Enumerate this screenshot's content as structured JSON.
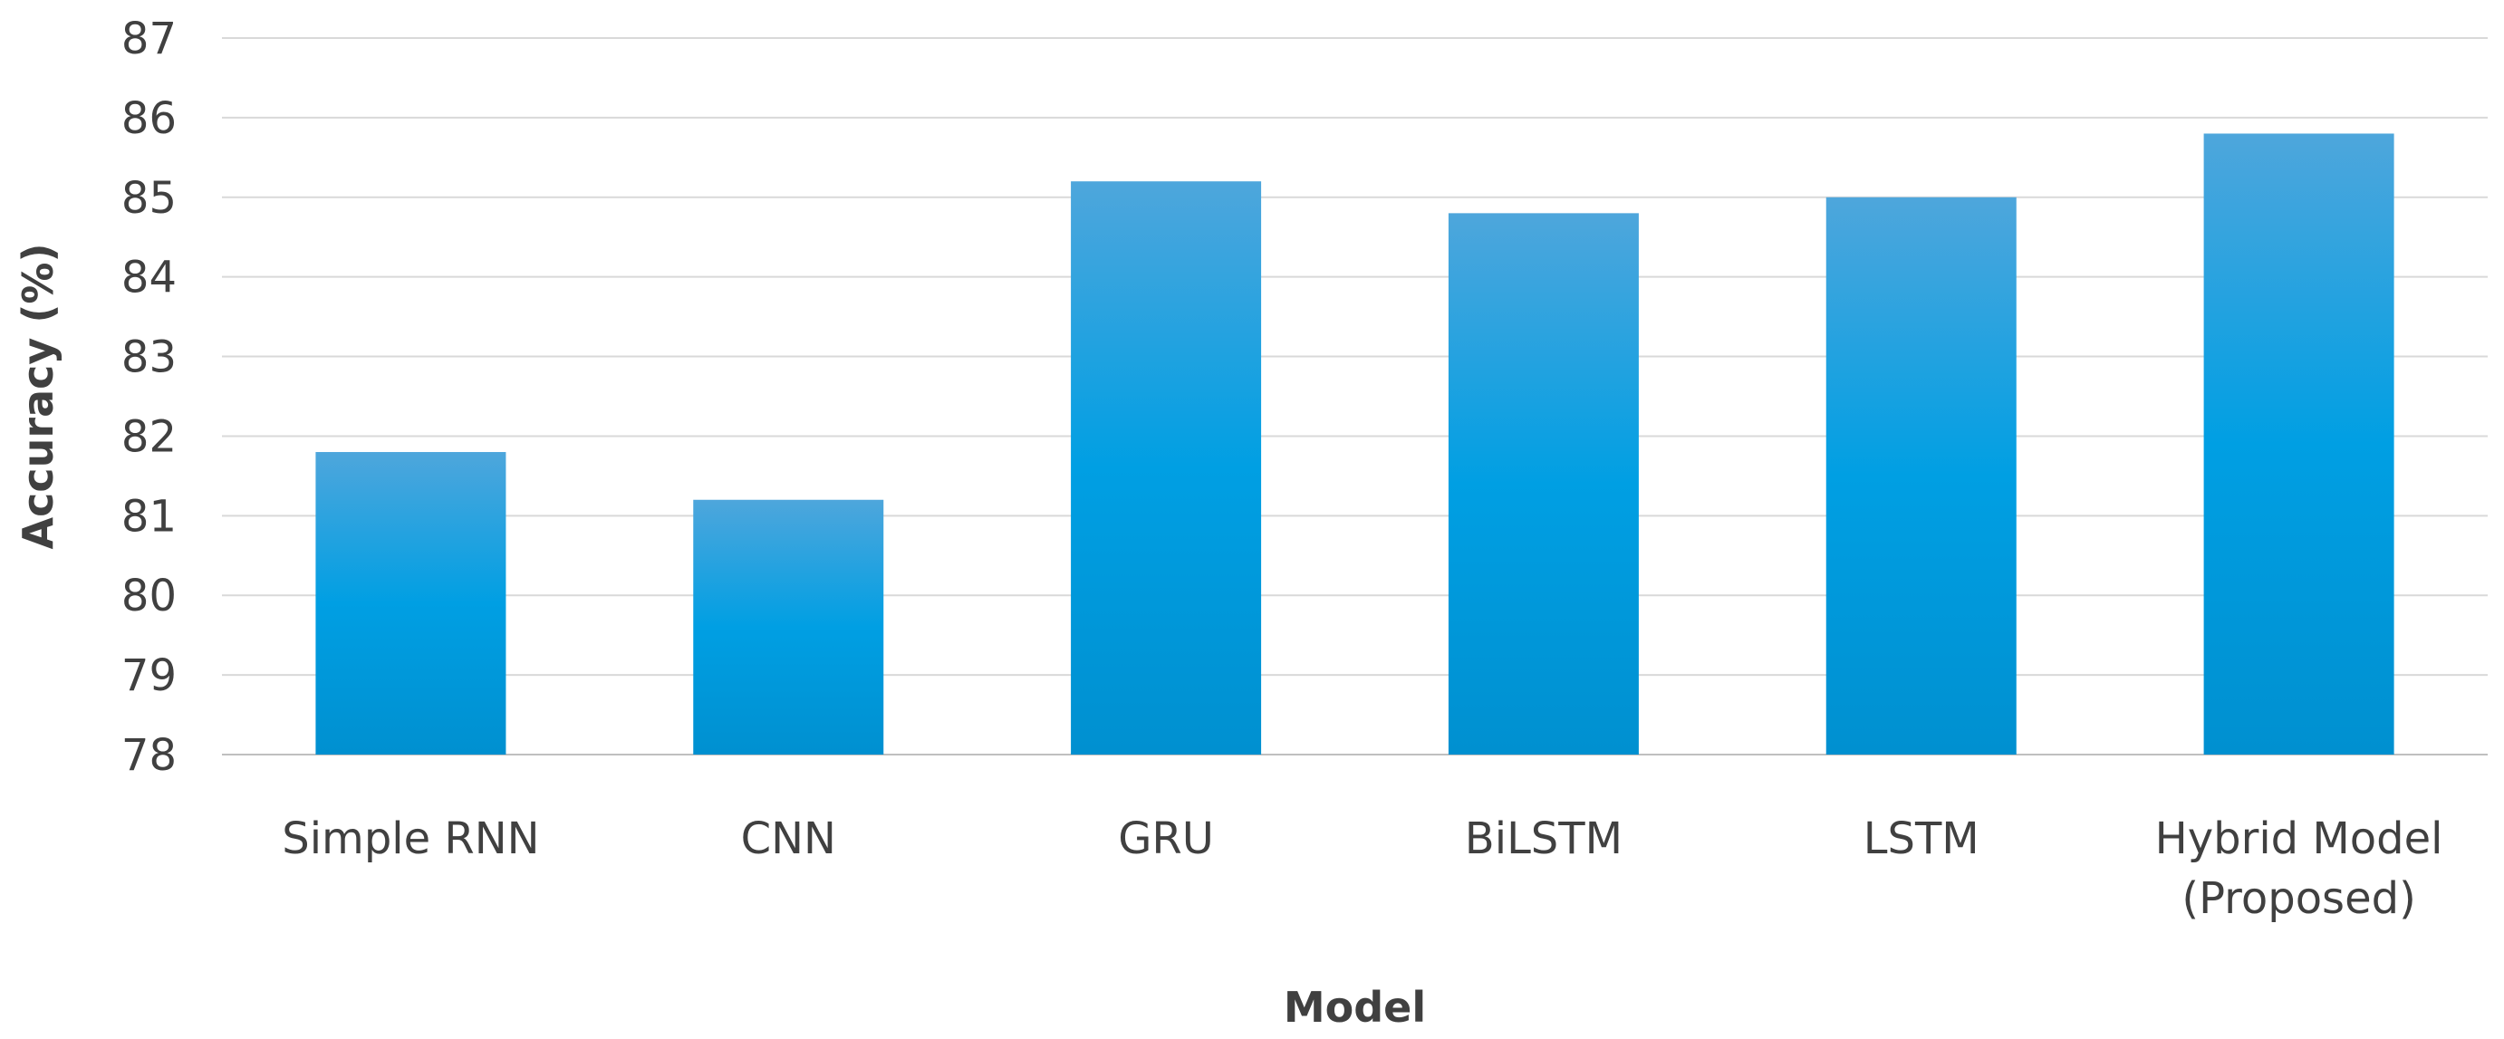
{
  "chart_data": {
    "type": "bar",
    "title": "",
    "xlabel": "Model",
    "ylabel": "Accuracy (%)",
    "categories": [
      "Simple RNN",
      "CNN",
      "GRU",
      "BiLSTM",
      "LSTM",
      "Hybrid Model (Proposed)"
    ],
    "category_lines": [
      [
        "Simple RNN"
      ],
      [
        "CNN"
      ],
      [
        "GRU"
      ],
      [
        "BiLSTM"
      ],
      [
        "LSTM"
      ],
      [
        "Hybrid Model",
        "(Proposed)"
      ]
    ],
    "values": [
      81.8,
      81.2,
      85.2,
      84.8,
      85.0,
      85.8
    ],
    "ylim": [
      78,
      87
    ],
    "yticks": [
      "78",
      "79",
      "80",
      "81",
      "82",
      "83",
      "84",
      "85",
      "86",
      "87"
    ],
    "grid": true,
    "legend": "none",
    "colors": {
      "bar_top": "#4ea6dc",
      "bar_mid": "#009fe3",
      "bar_bottom": "#0090d0",
      "text": "#404040",
      "grid": "#d9d9d9"
    }
  }
}
